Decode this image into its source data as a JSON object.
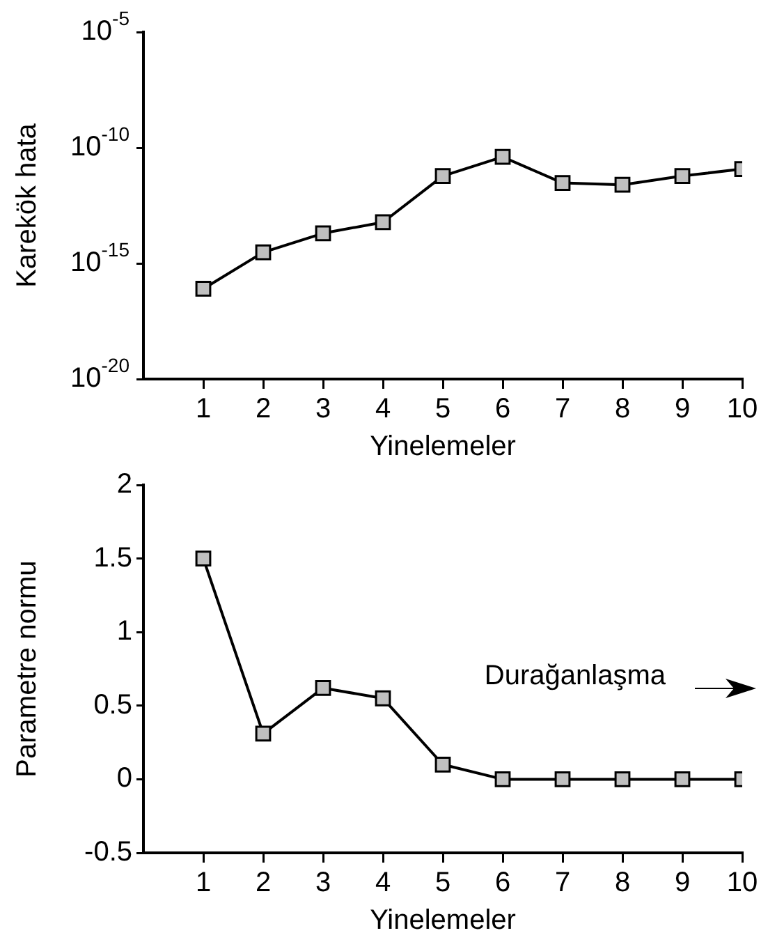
{
  "chart_data": [
    {
      "type": "line",
      "xlabel": "Yinelemeler",
      "ylabel": "Karekök hata",
      "x": [
        1,
        2,
        3,
        4,
        5,
        6,
        7,
        8,
        9,
        10
      ],
      "series": [
        {
          "color": "#000000",
          "values": [
            8e-17,
            3e-15,
            2e-14,
            6e-14,
            6e-12,
            4e-11,
            3e-12,
            2.5e-12,
            6e-12,
            1.2e-11
          ]
        }
      ],
      "xlim": [
        0,
        10
      ],
      "xticks": [
        1,
        2,
        3,
        4,
        5,
        6,
        7,
        8,
        9,
        10
      ],
      "ylim": [
        1e-20,
        1e-05
      ],
      "yticks": [
        {
          "value": 1e-20,
          "label": "10$^{-20}$"
        },
        {
          "value": 1e-15,
          "label": "10$^{-15}$"
        },
        {
          "value": 1e-10,
          "label": "10$^{-10}$"
        },
        {
          "value": 1e-05,
          "label": "10$^{-5}$"
        }
      ],
      "log": "y",
      "grid": false,
      "legend": false,
      "marker": "square",
      "line_style": "solid"
    },
    {
      "type": "line",
      "xlabel": "Yinelemeler",
      "ylabel": "Parametre normu",
      "x": [
        1,
        2,
        3,
        4,
        5,
        6,
        7,
        8,
        9,
        10
      ],
      "series": [
        {
          "color": "#000000",
          "values": [
            1.5,
            0.31,
            0.62,
            0.55,
            0.1,
            0,
            0,
            0,
            0,
            0
          ]
        }
      ],
      "xlim": [
        0,
        10
      ],
      "xticks": [
        1,
        2,
        3,
        4,
        5,
        6,
        7,
        8,
        9,
        10
      ],
      "ylim": [
        -0.5,
        2
      ],
      "yticks": [
        -0.5,
        0,
        0.5,
        1,
        1.5,
        2
      ],
      "annotations": [
        "Durağanlaşma"
      ],
      "grid": false,
      "legend": false,
      "marker": "square",
      "line_style": "solid"
    }
  ]
}
